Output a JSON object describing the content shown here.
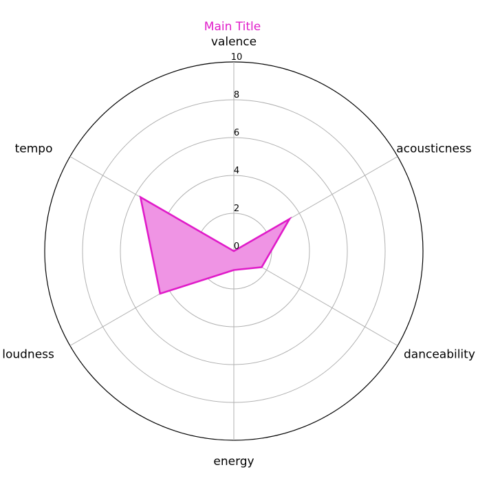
{
  "chart_data": {
    "type": "radar",
    "title": "Main Title",
    "title_color": "#e01bc9",
    "axes": [
      "valence",
      "acousticness",
      "danceability",
      "energy",
      "loudness",
      "tempo"
    ],
    "r_ticks": [
      "0",
      "2",
      "4",
      "6",
      "8",
      "10"
    ],
    "r_range": [
      0,
      10
    ],
    "grid": true,
    "series": [
      {
        "values": [
          0,
          3.4,
          1.7,
          1.0,
          4.5,
          5.7
        ],
        "line_color": "#e01bc9",
        "fill_color": "#ef94e4"
      }
    ]
  }
}
